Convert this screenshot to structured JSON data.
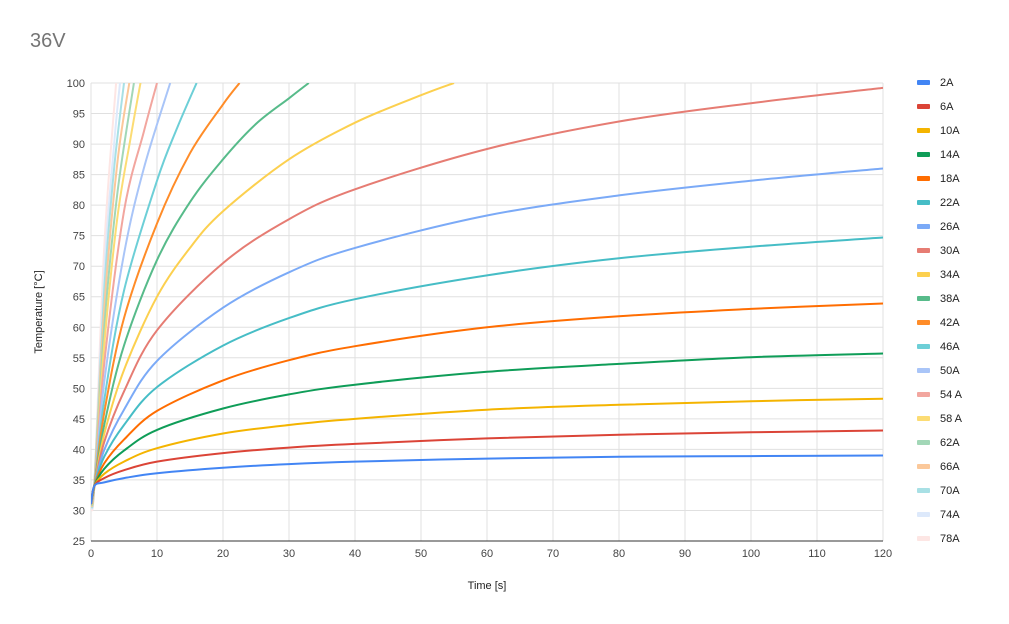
{
  "chart_data": {
    "type": "line",
    "title": "36V",
    "xlabel": "Time [s]",
    "ylabel": "Temperature [°C]",
    "xlim": [
      0,
      120
    ],
    "ylim": [
      25,
      100
    ],
    "xticks": [
      0,
      10,
      20,
      30,
      40,
      50,
      60,
      70,
      80,
      90,
      100,
      110,
      120
    ],
    "yticks": [
      25,
      30,
      35,
      40,
      45,
      50,
      55,
      60,
      65,
      70,
      75,
      80,
      85,
      90,
      95,
      100
    ],
    "grid": true,
    "legend_position": "right",
    "series": [
      {
        "name": "2A",
        "color": "#4285f4",
        "x": [
          0,
          0.5,
          2,
          5,
          10,
          20,
          30,
          40,
          60,
          80,
          100,
          120
        ],
        "y": [
          31,
          34,
          34.6,
          35.3,
          36.1,
          37.0,
          37.6,
          38.0,
          38.5,
          38.8,
          38.9,
          39.0
        ]
      },
      {
        "name": "6A",
        "color": "#db4437",
        "x": [
          0,
          0.5,
          2,
          5,
          10,
          20,
          30,
          40,
          60,
          80,
          100,
          120
        ],
        "y": [
          31,
          34,
          35.3,
          36.6,
          38.0,
          39.4,
          40.3,
          40.9,
          41.8,
          42.4,
          42.8,
          43.1
        ]
      },
      {
        "name": "10A",
        "color": "#f4b400",
        "x": [
          0,
          0.5,
          2,
          5,
          10,
          20,
          30,
          40,
          60,
          80,
          100,
          120
        ],
        "y": [
          31,
          34,
          36.0,
          38.0,
          40.2,
          42.6,
          44.0,
          45.0,
          46.5,
          47.3,
          47.9,
          48.3
        ]
      },
      {
        "name": "14A",
        "color": "#0f9d58",
        "x": [
          0,
          0.5,
          2,
          5,
          10,
          20,
          30,
          40,
          60,
          80,
          100,
          120
        ],
        "y": [
          31,
          34,
          36.8,
          39.8,
          43.2,
          46.7,
          49.0,
          50.6,
          52.7,
          54.0,
          55.1,
          55.7
        ]
      },
      {
        "name": "18A",
        "color": "#ff6d01",
        "x": [
          0,
          0.5,
          2,
          5,
          10,
          20,
          30,
          40,
          60,
          80,
          100,
          120
        ],
        "y": [
          31,
          34,
          37.7,
          41.6,
          46.3,
          51.3,
          54.6,
          56.9,
          60.0,
          61.8,
          63.0,
          63.9
        ]
      },
      {
        "name": "22A",
        "color": "#46bdc6",
        "x": [
          0,
          0.5,
          2,
          5,
          10,
          20,
          30,
          40,
          60,
          80,
          100,
          120
        ],
        "y": [
          31,
          34,
          38.8,
          44.0,
          50.2,
          57.0,
          61.5,
          64.6,
          68.5,
          71.3,
          73.2,
          74.7
        ]
      },
      {
        "name": "26A",
        "color": "#7baaf7",
        "x": [
          0,
          0.5,
          2,
          5,
          10,
          20,
          30,
          40,
          60,
          80,
          100,
          120
        ],
        "y": [
          31,
          34,
          39.9,
          46.5,
          54.5,
          63.2,
          69.0,
          73.0,
          78.3,
          81.6,
          84.0,
          86.0
        ]
      },
      {
        "name": "30A",
        "color": "#e67c73",
        "x": [
          0,
          0.5,
          2,
          5,
          10,
          20,
          30,
          40,
          60,
          80,
          100,
          120
        ],
        "y": [
          31,
          34,
          41.2,
          49.5,
          59.5,
          70.5,
          77.7,
          82.6,
          89.2,
          93.7,
          96.7,
          99.2
        ]
      },
      {
        "name": "34A",
        "color": "#fcd04f",
        "x": [
          0,
          0.5,
          2,
          5,
          10,
          15,
          20,
          30,
          40,
          50,
          55
        ],
        "y": [
          31,
          34,
          42.5,
          53.0,
          65.0,
          73.0,
          79.0,
          87.5,
          93.5,
          98.0,
          100
        ]
      },
      {
        "name": "38A",
        "color": "#57bb8a",
        "x": [
          0,
          0.5,
          2,
          5,
          10,
          15,
          20,
          25,
          30,
          33
        ],
        "y": [
          31,
          34,
          44.0,
          57.0,
          71.0,
          80.5,
          87.5,
          93.3,
          97.5,
          100
        ]
      },
      {
        "name": "42A",
        "color": "#ff8c28",
        "x": [
          0,
          0.5,
          2,
          5,
          10,
          15,
          20,
          22.5
        ],
        "y": [
          31,
          34,
          46.0,
          61.5,
          77.0,
          88.5,
          96.5,
          100
        ]
      },
      {
        "name": "46A",
        "color": "#6dcfd7",
        "x": [
          0,
          0.5,
          2,
          5,
          10,
          13,
          16
        ],
        "y": [
          31,
          34,
          48.0,
          66.0,
          84.0,
          92.5,
          100
        ]
      },
      {
        "name": "50A",
        "color": "#a9c5f8",
        "x": [
          0,
          0.5,
          2,
          5,
          8,
          12
        ],
        "y": [
          31,
          34,
          51.0,
          72.0,
          86.0,
          100
        ]
      },
      {
        "name": "54 A",
        "color": "#f2a69f",
        "x": [
          0,
          0.5,
          2,
          5,
          8,
          10
        ],
        "y": [
          31,
          34,
          54.0,
          79.0,
          92.0,
          100
        ]
      },
      {
        "name": "58 A",
        "color": "#fcdc74",
        "x": [
          0,
          0.5,
          2,
          4,
          6,
          7.5
        ],
        "y": [
          31,
          34,
          57.0,
          78.0,
          91.0,
          100
        ]
      },
      {
        "name": "62A",
        "color": "#a2d7b7",
        "x": [
          0,
          0.5,
          2,
          4,
          6.5
        ],
        "y": [
          31,
          34,
          60.0,
          82.0,
          100
        ]
      },
      {
        "name": "66A",
        "color": "#fbc89a",
        "x": [
          0,
          0.5,
          2,
          4,
          5.8
        ],
        "y": [
          31,
          34,
          63.0,
          87.0,
          100
        ]
      },
      {
        "name": "70A",
        "color": "#a8e0e5",
        "x": [
          0,
          0.5,
          2,
          3.5,
          5
        ],
        "y": [
          31,
          34,
          66.0,
          86.0,
          100
        ]
      },
      {
        "name": "74A",
        "color": "#dde9fb",
        "x": [
          0,
          0.5,
          2,
          3.5,
          4.4
        ],
        "y": [
          31,
          34,
          69.0,
          90.0,
          100
        ]
      },
      {
        "name": "78A",
        "color": "#fde6e4",
        "x": [
          0,
          0.5,
          2,
          3.8
        ],
        "y": [
          31,
          34,
          73.0,
          100
        ]
      }
    ]
  }
}
